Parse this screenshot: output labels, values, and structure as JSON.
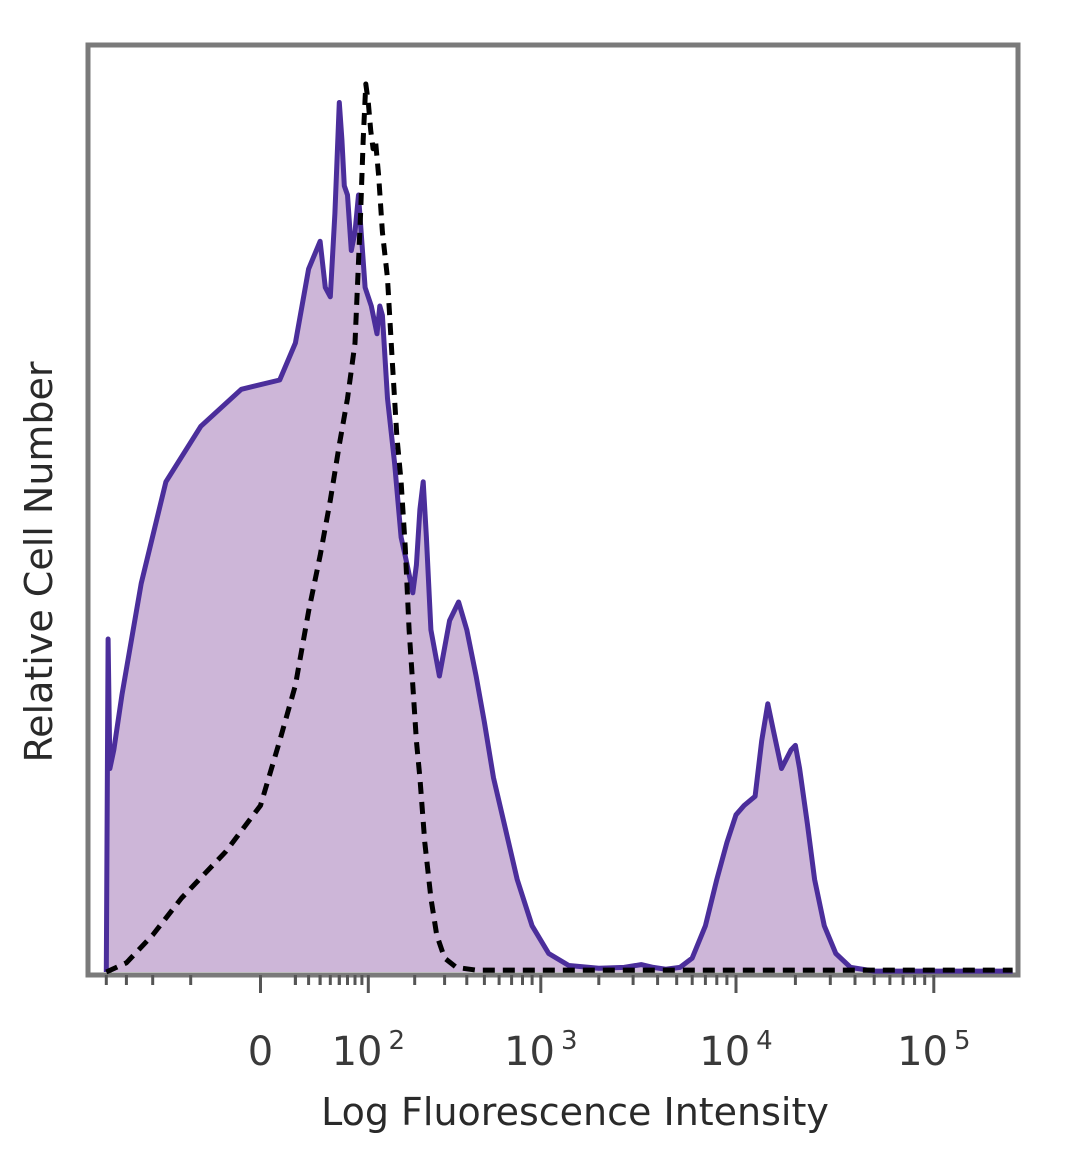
{
  "chart_data": {
    "type": "area",
    "xlabel": "Log Fluorescence Intensity",
    "ylabel": "Relative Cell Number",
    "x_scale": "biexponential",
    "grid": false,
    "legend": "none",
    "colors": {
      "stained_fill": "#cdb6d8",
      "stained_line": "#4b2e9b",
      "control_line": "#000000",
      "frame": "#7a7a7a"
    },
    "x_ticks": [
      {
        "value": 0,
        "base": "0",
        "exp": ""
      },
      {
        "value": 100,
        "base": "10",
        "exp": "2"
      },
      {
        "value": 1000,
        "base": "10",
        "exp": "3"
      },
      {
        "value": 10000,
        "base": "10",
        "exp": "4"
      },
      {
        "value": 100000,
        "base": "10",
        "exp": "5"
      }
    ],
    "xlim": [
      -250,
      260000
    ],
    "ylim": [
      0,
      100
    ],
    "series": [
      {
        "style": "filled-solid",
        "points": [
          [
            -200,
            0
          ],
          [
            -195,
            36
          ],
          [
            -190,
            22
          ],
          [
            -180,
            24
          ],
          [
            -160,
            30
          ],
          [
            -120,
            42
          ],
          [
            -80,
            53
          ],
          [
            -40,
            59
          ],
          [
            -10,
            63
          ],
          [
            10,
            64
          ],
          [
            20,
            68
          ],
          [
            30,
            76
          ],
          [
            40,
            79
          ],
          [
            45,
            74
          ],
          [
            50,
            73
          ],
          [
            55,
            82
          ],
          [
            60,
            94
          ],
          [
            63,
            90
          ],
          [
            66,
            85
          ],
          [
            70,
            84
          ],
          [
            75,
            78
          ],
          [
            80,
            80
          ],
          [
            85,
            84
          ],
          [
            95,
            74
          ],
          [
            105,
            72
          ],
          [
            115,
            69
          ],
          [
            120,
            72
          ],
          [
            125,
            71
          ],
          [
            135,
            62
          ],
          [
            150,
            55
          ],
          [
            165,
            47
          ],
          [
            175,
            45
          ],
          [
            185,
            43
          ],
          [
            195,
            41
          ],
          [
            205,
            44
          ],
          [
            215,
            50
          ],
          [
            225,
            53
          ],
          [
            235,
            47
          ],
          [
            250,
            37
          ],
          [
            280,
            32
          ],
          [
            320,
            38
          ],
          [
            360,
            40
          ],
          [
            400,
            37
          ],
          [
            450,
            32
          ],
          [
            500,
            27
          ],
          [
            560,
            21
          ],
          [
            640,
            16
          ],
          [
            750,
            10
          ],
          [
            900,
            5
          ],
          [
            1100,
            2
          ],
          [
            1400,
            0.7
          ],
          [
            2000,
            0.4
          ],
          [
            2700,
            0.5
          ],
          [
            3300,
            0.8
          ],
          [
            3800,
            0.5
          ],
          [
            4400,
            0.3
          ],
          [
            5200,
            0.5
          ],
          [
            6000,
            1.5
          ],
          [
            7000,
            5
          ],
          [
            8000,
            10
          ],
          [
            9000,
            14
          ],
          [
            10000,
            17
          ],
          [
            11000,
            18
          ],
          [
            12500,
            19
          ],
          [
            13500,
            25
          ],
          [
            14500,
            29
          ],
          [
            15500,
            26
          ],
          [
            17000,
            22
          ],
          [
            19000,
            24
          ],
          [
            20000,
            24.5
          ],
          [
            21000,
            22
          ],
          [
            23000,
            16
          ],
          [
            25000,
            10
          ],
          [
            28000,
            5
          ],
          [
            32000,
            2
          ],
          [
            38000,
            0.5
          ],
          [
            50000,
            0.1
          ],
          [
            100000,
            0.1
          ],
          [
            250000,
            0.1
          ]
        ]
      },
      {
        "style": "dashed",
        "points": [
          [
            -200,
            0
          ],
          [
            -150,
            1
          ],
          [
            -100,
            4
          ],
          [
            -60,
            8
          ],
          [
            -20,
            13
          ],
          [
            0,
            18
          ],
          [
            10,
            25
          ],
          [
            20,
            31
          ],
          [
            30,
            39
          ],
          [
            40,
            45
          ],
          [
            50,
            51
          ],
          [
            60,
            57
          ],
          [
            70,
            62
          ],
          [
            80,
            68
          ],
          [
            88,
            82
          ],
          [
            92,
            90
          ],
          [
            96,
            96
          ],
          [
            100,
            94
          ],
          [
            104,
            91
          ],
          [
            108,
            89
          ],
          [
            112,
            90
          ],
          [
            118,
            86
          ],
          [
            125,
            80
          ],
          [
            135,
            75
          ],
          [
            145,
            66
          ],
          [
            155,
            58
          ],
          [
            165,
            53
          ],
          [
            175,
            46
          ],
          [
            185,
            37
          ],
          [
            195,
            31
          ],
          [
            205,
            25
          ],
          [
            215,
            21
          ],
          [
            230,
            14
          ],
          [
            250,
            8
          ],
          [
            270,
            4
          ],
          [
            300,
            1.5
          ],
          [
            350,
            0.5
          ],
          [
            450,
            0.2
          ],
          [
            250000,
            0.2
          ]
        ]
      }
    ]
  }
}
